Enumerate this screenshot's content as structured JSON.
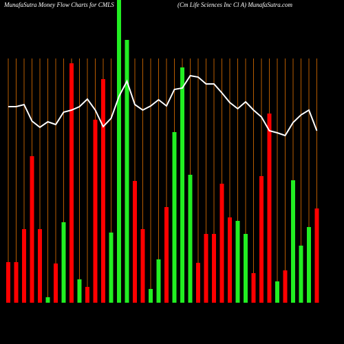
{
  "chart_data": {
    "type": "bar",
    "title": "MunafaSutra  Money Flow  Charts for CMLS",
    "subtitle": "(Cm Life   Sciences Inc Cl A) MunafaSutra.com",
    "values": [
      59,
      59,
      107,
      213,
      107,
      8,
      57,
      117,
      348,
      34,
      23,
      266,
      325,
      102,
      440,
      382,
      177,
      107,
      20,
      63,
      139,
      248,
      342,
      186,
      58,
      100,
      100,
      173,
      124,
      119,
      100,
      43,
      184,
      275,
      31,
      47,
      178,
      83,
      110,
      137
    ],
    "colors": [
      "#ff0000",
      "#ff0000",
      "#ff0000",
      "#ff0000",
      "#ff0000",
      "#22ee22",
      "#ff0000",
      "#22ee22",
      "#ff0000",
      "#22ee22",
      "#ff0000",
      "#ff0000",
      "#ff0000",
      "#22ee22",
      "#22ee22",
      "#22ee22",
      "#ff0000",
      "#ff0000",
      "#22ee22",
      "#22ee22",
      "#ff0000",
      "#22ee22",
      "#22ee22",
      "#22ee22",
      "#ff0000",
      "#ff0000",
      "#ff0000",
      "#ff0000",
      "#ff0000",
      "#22ee22",
      "#22ee22",
      "#ff0000",
      "#ff0000",
      "#ff0000",
      "#22ee22",
      "#ff0000",
      "#22ee22",
      "#22ee22",
      "#22ee22",
      "#ff0000"
    ],
    "line": {
      "color": "#ffffff",
      "values": [
        285,
        285,
        288,
        264,
        255,
        263,
        259,
        277,
        280,
        285,
        296,
        280,
        256,
        268,
        300,
        322,
        288,
        280,
        286,
        295,
        286,
        310,
        312,
        330,
        328,
        318,
        318,
        305,
        291,
        282,
        292,
        280,
        270,
        250,
        247,
        243,
        262,
        273,
        280,
        250
      ]
    },
    "grid_color": "#b85c00"
  }
}
